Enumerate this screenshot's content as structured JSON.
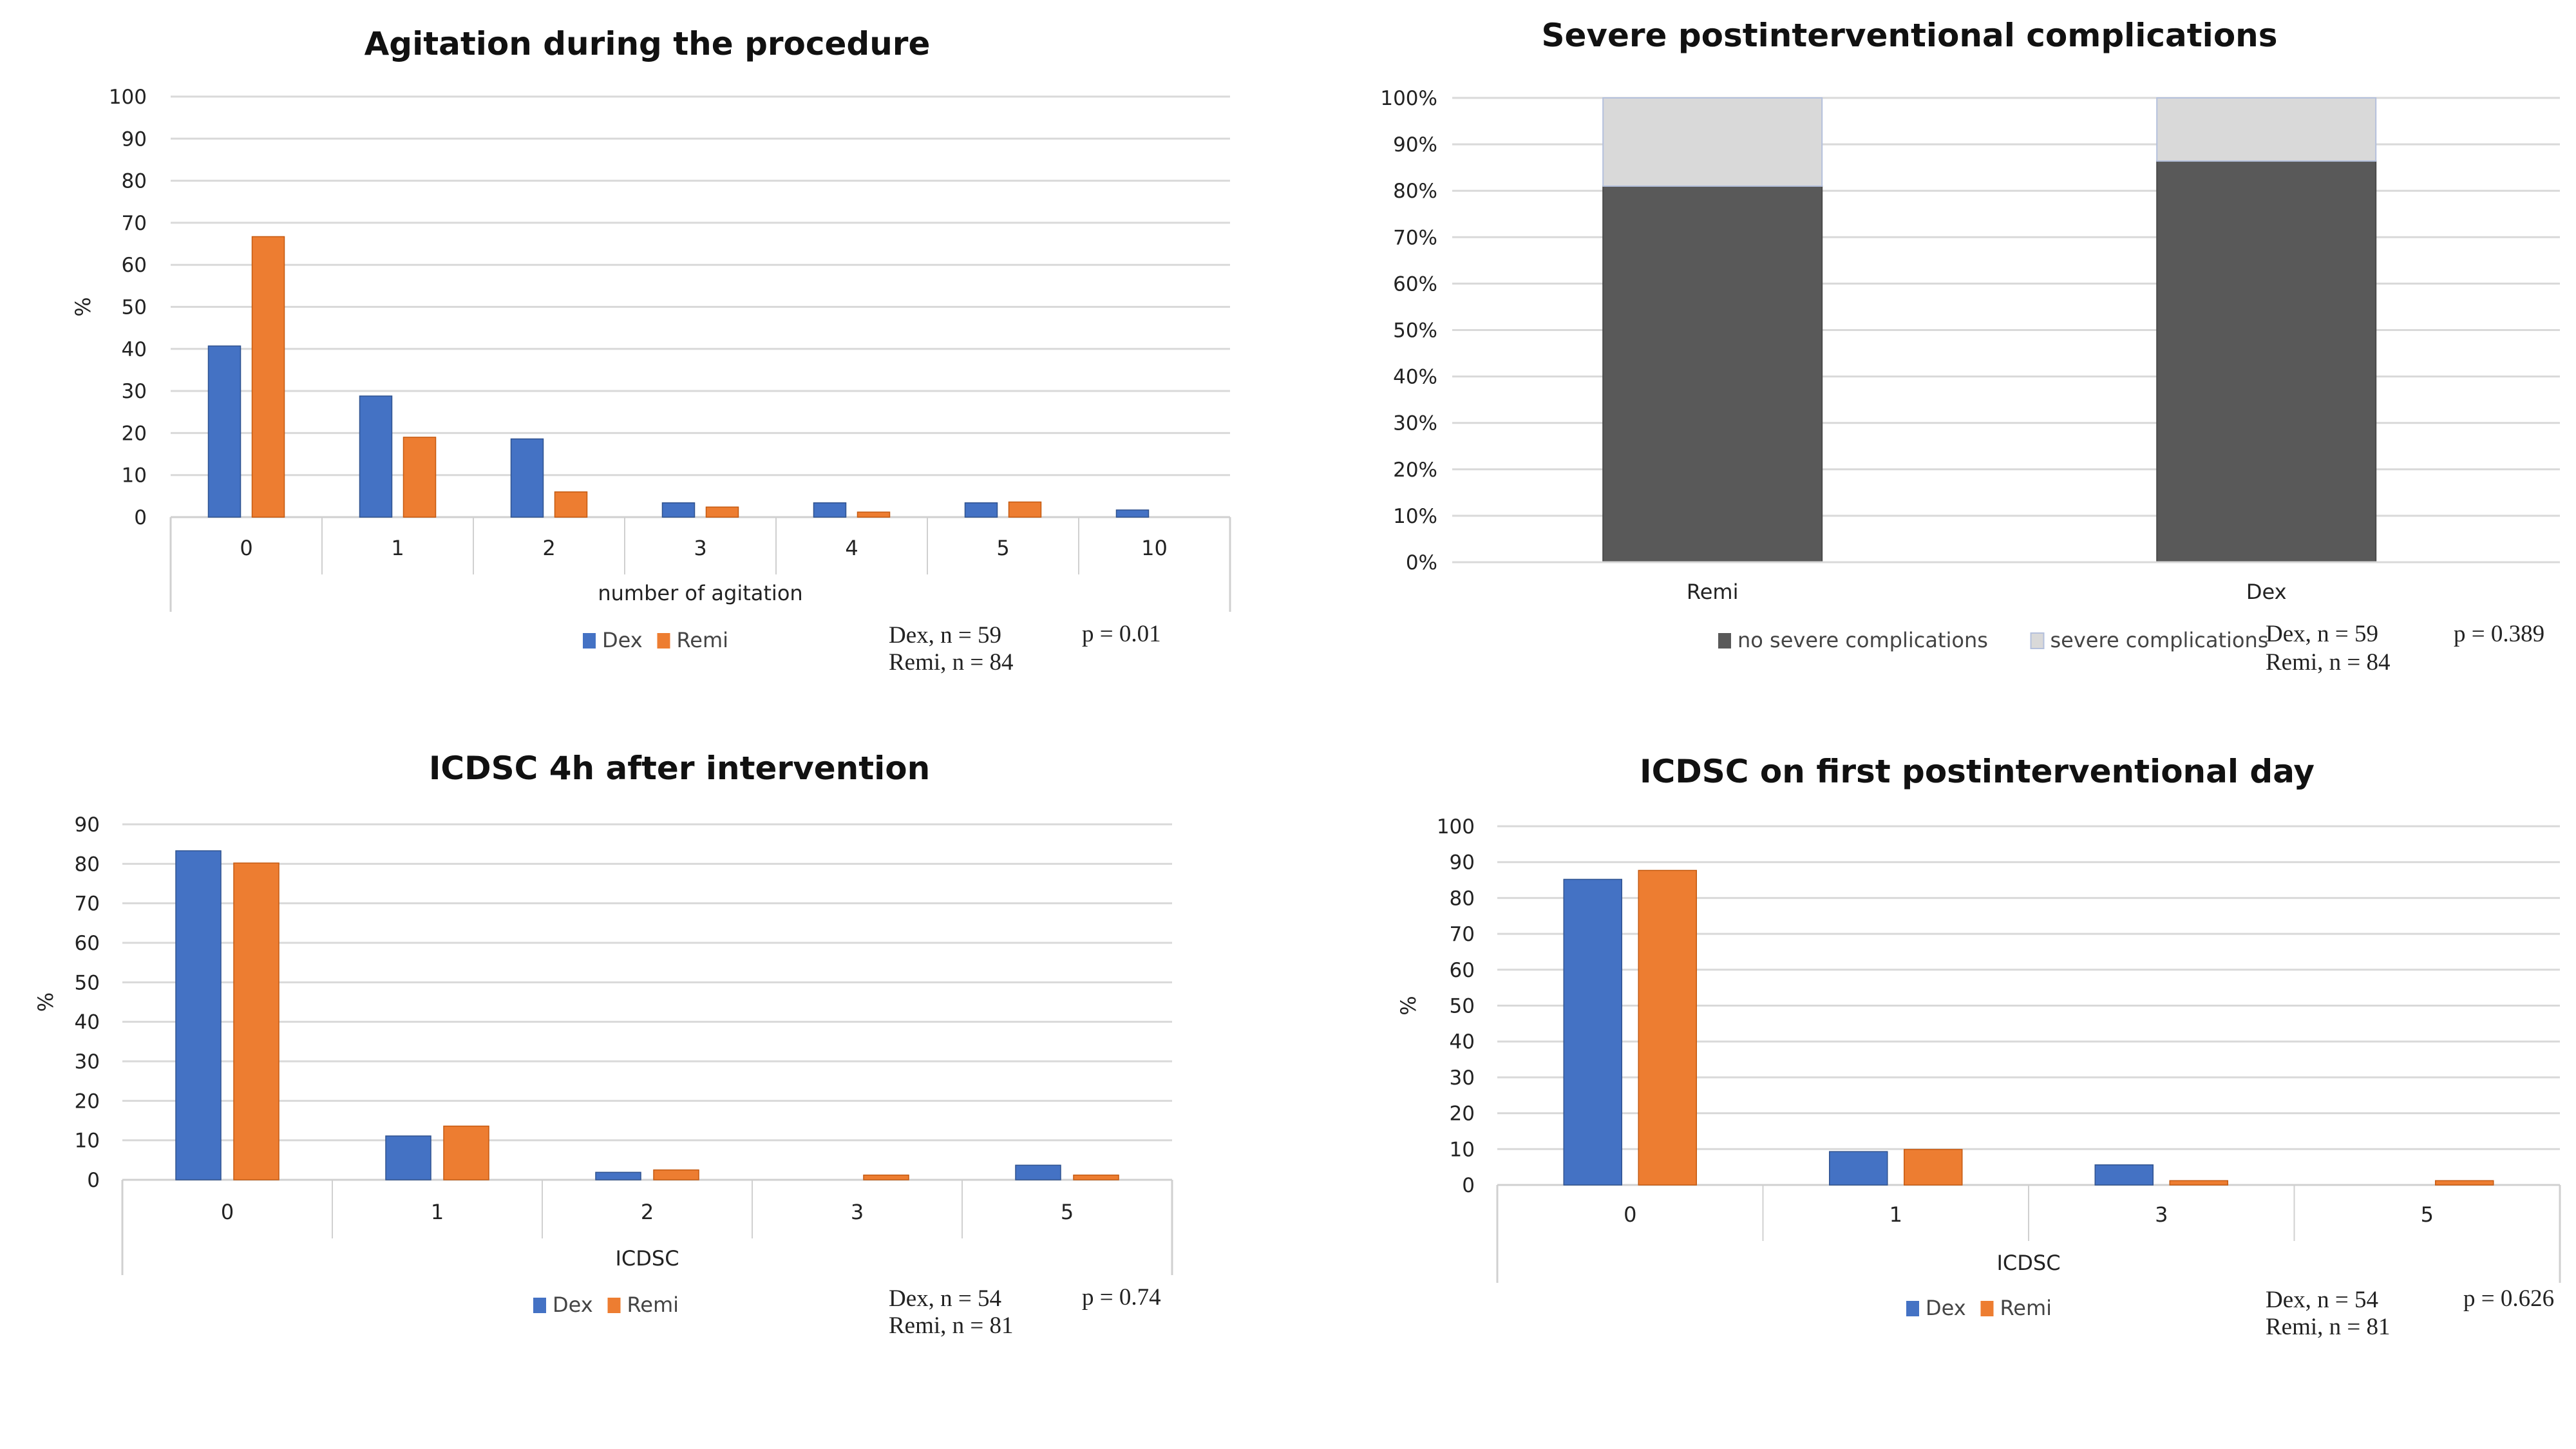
{
  "colors": {
    "dex": "#4472c4",
    "remi": "#ed7d31",
    "no_severe": "#595959",
    "severe": "#d9d9d9",
    "grid": "#d9d9d9"
  },
  "chart_data": [
    {
      "id": "agitation",
      "type": "bar",
      "title": "Agitation during the procedure",
      "xlabel": "number of agitation",
      "ylabel": "%",
      "ylim": [
        0,
        100
      ],
      "yticks": [
        0,
        10,
        20,
        30,
        40,
        50,
        60,
        70,
        80,
        90,
        100
      ],
      "ytick_labels": [
        "0",
        "10",
        "20",
        "30",
        "40",
        "50",
        "60",
        "70",
        "80",
        "90",
        "100"
      ],
      "grid": true,
      "categories": [
        "0",
        "1",
        "2",
        "3",
        "4",
        "5",
        "10"
      ],
      "series": [
        {
          "name": "Dex",
          "color_key": "dex",
          "values": [
            40.7,
            28.8,
            18.6,
            3.4,
            3.4,
            3.4,
            1.7
          ]
        },
        {
          "name": "Remi",
          "color_key": "remi",
          "values": [
            66.7,
            19.0,
            6.0,
            2.4,
            1.2,
            3.6,
            0
          ]
        }
      ],
      "legend": [
        "Dex",
        "Remi"
      ],
      "legend_position": "bottom",
      "annotations": {
        "n_dex": "Dex, n = 59",
        "n_remi": "Remi, n = 84",
        "p": "p = 0.01"
      }
    },
    {
      "id": "complications",
      "type": "bar",
      "stacked": true,
      "title": "Severe postinterventional complications",
      "xlabel": "",
      "ylabel": "",
      "ylim": [
        0,
        100
      ],
      "yticks": [
        0,
        10,
        20,
        30,
        40,
        50,
        60,
        70,
        80,
        90,
        100
      ],
      "ytick_labels": [
        "0%",
        "10%",
        "20%",
        "30%",
        "40%",
        "50%",
        "60%",
        "70%",
        "80%",
        "90%",
        "100%"
      ],
      "grid": true,
      "categories": [
        "Remi",
        "Dex"
      ],
      "series": [
        {
          "name": "no severe complications",
          "color_key": "no_severe",
          "values": [
            81,
            86.4
          ]
        },
        {
          "name": "severe complications",
          "color_key": "severe",
          "values": [
            19,
            13.6
          ]
        }
      ],
      "legend": [
        "no severe complications",
        "severe complications"
      ],
      "legend_position": "bottom",
      "annotations": {
        "n_dex": "Dex, n = 59",
        "n_remi": "Remi, n = 84",
        "p": "p = 0.389"
      }
    },
    {
      "id": "icdsc4h",
      "type": "bar",
      "title": "ICDSC 4h after intervention",
      "xlabel": "ICDSC",
      "ylabel": "%",
      "ylim": [
        0,
        90
      ],
      "yticks": [
        0,
        10,
        20,
        30,
        40,
        50,
        60,
        70,
        80,
        90
      ],
      "ytick_labels": [
        "0",
        "10",
        "20",
        "30",
        "40",
        "50",
        "60",
        "70",
        "80",
        "90"
      ],
      "grid": true,
      "categories": [
        "0",
        "1",
        "2",
        "3",
        "5"
      ],
      "series": [
        {
          "name": "Dex",
          "color_key": "dex",
          "values": [
            83.3,
            11.1,
            1.9,
            0,
            3.7
          ]
        },
        {
          "name": "Remi",
          "color_key": "remi",
          "values": [
            80.2,
            13.6,
            2.5,
            1.2,
            1.2
          ]
        }
      ],
      "legend": [
        "Dex",
        "Remi"
      ],
      "legend_position": "bottom",
      "annotations": {
        "n_dex": "Dex, n = 54",
        "n_remi": "Remi, n = 81",
        "p": "p = 0.74"
      }
    },
    {
      "id": "icdsc_day1",
      "type": "bar",
      "title": "ICDSC on first postinterventional day",
      "xlabel": "ICDSC",
      "ylabel": "%",
      "ylim": [
        0,
        100
      ],
      "yticks": [
        0,
        10,
        20,
        30,
        40,
        50,
        60,
        70,
        80,
        90,
        100
      ],
      "ytick_labels": [
        "0",
        "10",
        "20",
        "30",
        "40",
        "50",
        "60",
        "70",
        "80",
        "90",
        "100"
      ],
      "grid": true,
      "categories": [
        "0",
        "1",
        "3",
        "5"
      ],
      "series": [
        {
          "name": "Dex",
          "color_key": "dex",
          "values": [
            85.2,
            9.3,
            5.6,
            0
          ]
        },
        {
          "name": "Remi",
          "color_key": "remi",
          "values": [
            87.7,
            9.9,
            1.2,
            1.2
          ]
        }
      ],
      "legend": [
        "Dex",
        "Remi"
      ],
      "legend_position": "bottom",
      "annotations": {
        "n_dex": "Dex, n = 54",
        "n_remi": "Remi, n = 81",
        "p": "p = 0.626"
      }
    }
  ]
}
